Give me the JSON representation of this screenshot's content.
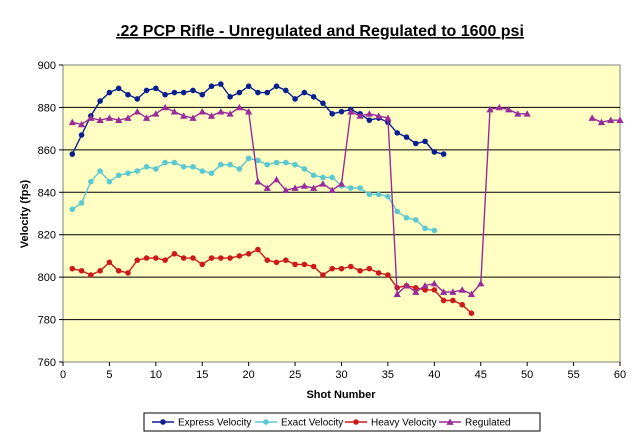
{
  "chart_data": {
    "type": "line",
    "title": ".22 PCP Rifle - Unregulated and Regulated to 1600 psi",
    "xlabel": "Shot Number",
    "ylabel": "Velocity (fps)",
    "xlim": [
      0,
      60
    ],
    "ylim": [
      760,
      900
    ],
    "xticks": [
      0,
      5,
      10,
      15,
      20,
      25,
      30,
      35,
      40,
      45,
      50,
      55,
      60
    ],
    "yticks": [
      760,
      780,
      800,
      820,
      840,
      860,
      880,
      900
    ],
    "grid": true,
    "legend_position": "bottom",
    "series": [
      {
        "name": "Express Velocity",
        "color": "#0a1f8f",
        "marker": "circle",
        "x": [
          1,
          2,
          3,
          4,
          5,
          6,
          7,
          8,
          9,
          10,
          11,
          12,
          13,
          14,
          15,
          16,
          17,
          18,
          19,
          20,
          21,
          22,
          23,
          24,
          25,
          26,
          27,
          28,
          29,
          30,
          31,
          32,
          33,
          34,
          35,
          36,
          37,
          38,
          39,
          40,
          41
        ],
        "y": [
          858,
          867,
          876,
          883,
          887,
          889,
          886,
          884,
          888,
          889,
          886,
          887,
          887,
          888,
          886,
          890,
          891,
          885,
          887,
          890,
          887,
          887,
          890,
          888,
          884,
          887,
          885,
          882,
          877,
          878,
          879,
          877,
          874,
          875,
          873,
          868,
          866,
          863,
          864,
          859,
          858
        ]
      },
      {
        "name": "Exact Velocity",
        "color": "#5cc8d0",
        "marker": "circle",
        "x": [
          1,
          2,
          3,
          4,
          5,
          6,
          7,
          8,
          9,
          10,
          11,
          12,
          13,
          14,
          15,
          16,
          17,
          18,
          19,
          20,
          21,
          22,
          23,
          24,
          25,
          26,
          27,
          28,
          29,
          30,
          31,
          32,
          33,
          34,
          35,
          36,
          37,
          38,
          39,
          40
        ],
        "y": [
          832,
          835,
          845,
          850,
          845,
          848,
          849,
          850,
          852,
          851,
          854,
          854,
          852,
          852,
          850,
          849,
          853,
          853,
          851,
          856,
          855,
          853,
          854,
          854,
          853,
          851,
          848,
          847,
          847,
          843,
          842,
          842,
          839,
          839,
          838,
          831,
          828,
          827,
          823,
          822
        ]
      },
      {
        "name": "Heavy Velocity",
        "color": "#cc1a1a",
        "marker": "circle",
        "x": [
          1,
          2,
          3,
          4,
          5,
          6,
          7,
          8,
          9,
          10,
          11,
          12,
          13,
          14,
          15,
          16,
          17,
          18,
          19,
          20,
          21,
          22,
          23,
          24,
          25,
          26,
          27,
          28,
          29,
          30,
          31,
          32,
          33,
          34,
          35,
          36,
          37,
          38,
          39,
          40,
          41,
          42,
          43,
          44
        ],
        "y": [
          804,
          803,
          801,
          803,
          807,
          803,
          802,
          808,
          809,
          809,
          808,
          811,
          809,
          809,
          806,
          809,
          809,
          809,
          810,
          811,
          813,
          808,
          807,
          808,
          806,
          806,
          805,
          801,
          804,
          804,
          805,
          803,
          804,
          802,
          801,
          795,
          796,
          795,
          794,
          794,
          789,
          789,
          787,
          783
        ]
      },
      {
        "name": "Regulated",
        "color": "#9a2b9a",
        "marker": "triangle",
        "segments": [
          {
            "x": [
              1,
              2,
              3,
              4,
              5,
              6,
              7,
              8,
              9,
              10,
              11,
              12,
              13,
              14,
              15,
              16,
              17,
              18,
              19,
              20,
              21,
              22,
              23,
              24,
              25,
              26,
              27,
              28,
              29,
              30,
              31,
              32,
              33,
              34,
              35,
              36,
              37,
              38,
              39,
              40,
              41,
              42,
              43,
              44,
              45,
              46,
              47,
              48,
              49,
              50
            ],
            "y": [
              873,
              872,
              875,
              874,
              875,
              874,
              875,
              878,
              875,
              877,
              880,
              878,
              876,
              875,
              878,
              876,
              878,
              877,
              880,
              878,
              845,
              842,
              846,
              841,
              842,
              843,
              842,
              844,
              841,
              844,
              878,
              876,
              877,
              876,
              875,
              792,
              796,
              793,
              796,
              797,
              793,
              793,
              794,
              792,
              797,
              879,
              880,
              879,
              877,
              877
            ]
          },
          {
            "x": [
              57,
              58,
              59,
              60
            ],
            "y": [
              875,
              873,
              874,
              874
            ]
          }
        ]
      }
    ]
  }
}
